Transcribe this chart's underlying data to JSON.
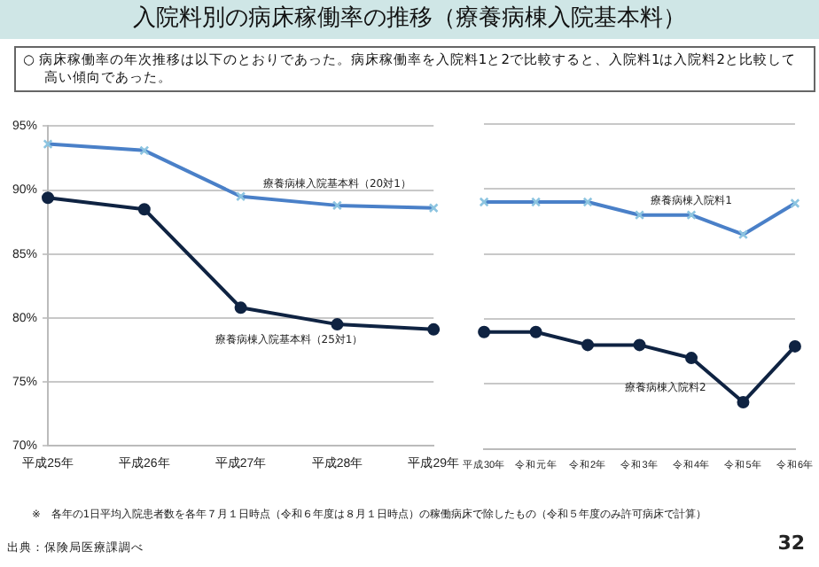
{
  "chart_data": [
    {
      "type": "line",
      "title": "入院料別の病床稼働率の推移（療養病棟入院基本料）",
      "subtitle": "○ 病床稼働率の年次推移は以下のとおりであった。病床稼働率を入院料1と2で比較すると、入院料1は入院料2と比較して高い傾向であった。",
      "annotations": [
        "※　各年の1日平均入院患者数を各年７月１日時点（令和６年度は８月１日時点）の稼働病床で除したもの（令和５年度のみ許可病床で計算）",
        "出典：保険局医療課調べ",
        "32"
      ],
      "categories": [
        "平成25年",
        "平成26年",
        "平成27年",
        "平成28年",
        "平成29年"
      ],
      "series": [
        {
          "name": "療養病棟入院基本料（20対1）",
          "color": "#4a80c8",
          "marker": "cross",
          "values": [
            93.6,
            93.1,
            89.5,
            88.8,
            88.6
          ]
        },
        {
          "name": "療養病棟入院基本料（25対1）",
          "color": "#0f2342",
          "marker": "circle",
          "values": [
            89.4,
            88.5,
            80.8,
            79.5,
            79.1
          ]
        }
      ],
      "ylim": [
        70,
        95
      ],
      "yticks": [
        {
          "value": 70,
          "label": "70%"
        },
        {
          "value": 75,
          "label": "75%"
        },
        {
          "value": 80,
          "label": "80%"
        },
        {
          "value": 85,
          "label": "85%"
        },
        {
          "value": 90,
          "label": "90%"
        },
        {
          "value": 95,
          "label": "95%"
        }
      ],
      "grid": "y",
      "legend": false
    },
    {
      "type": "line",
      "categories": [
        "平成30年",
        "令和元年",
        "令和2年",
        "令和3年",
        "令和4年",
        "令和5年",
        "令和6年"
      ],
      "series": [
        {
          "name": "療養病棟入院料1",
          "color": "#4a80c8",
          "marker": "cross",
          "values": [
            89.0,
            89.0,
            89.0,
            88.0,
            88.0,
            86.5,
            88.9
          ]
        },
        {
          "name": "療養病棟入院料2",
          "color": "#0f2342",
          "marker": "circle",
          "values": [
            79.0,
            79.0,
            78.0,
            78.0,
            77.0,
            73.6,
            77.9
          ]
        }
      ],
      "ylim": [
        70,
        95
      ],
      "yticks": [
        70,
        75,
        80,
        85,
        90,
        95
      ],
      "tick_labels": "x",
      "grid": "y",
      "legend": false
    }
  ]
}
